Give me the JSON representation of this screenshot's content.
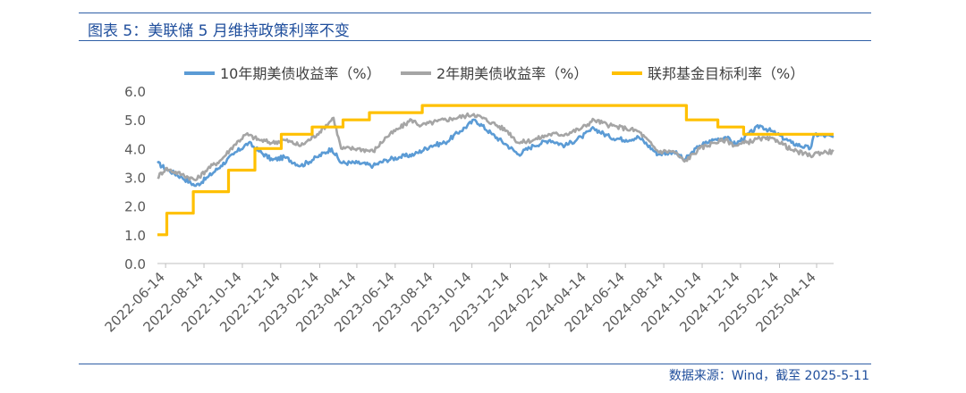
{
  "figure": {
    "title": "图表 5：美联储 5 月维持政策利率不变",
    "source": "数据来源：Wind，截至 2025-5-11"
  },
  "colors": {
    "us10y": "#5b9bd5",
    "us2y": "#a5a5a5",
    "fedfunds": "#ffc000",
    "rule": "#2f5fa6",
    "text_blue": "#1f4e9c"
  },
  "chart_data": {
    "type": "line",
    "title": "",
    "xlabel": "",
    "ylabel": "",
    "ylim": [
      0,
      6
    ],
    "yticks": [
      "0.0",
      "1.0",
      "2.0",
      "3.0",
      "4.0",
      "5.0",
      "6.0"
    ],
    "x_range": [
      "2022-06-01",
      "2025-05-11"
    ],
    "xticks": [
      "2022-06-14",
      "2022-08-14",
      "2022-10-14",
      "2022-12-14",
      "2023-02-14",
      "2023-04-14",
      "2023-06-14",
      "2023-08-14",
      "2023-10-14",
      "2023-12-14",
      "2024-02-14",
      "2024-04-14",
      "2024-06-14",
      "2024-08-14",
      "2024-10-14",
      "2024-12-14",
      "2025-02-14",
      "2025-04-14"
    ],
    "grid": false,
    "legend_position": "top",
    "series": [
      {
        "name": "10年期美债收益率（%）",
        "key": "us10y",
        "style": "line",
        "points": [
          [
            "2022-06-01",
            3.5
          ],
          [
            "2022-06-14",
            3.3
          ],
          [
            "2022-07-10",
            3.0
          ],
          [
            "2022-08-01",
            2.7
          ],
          [
            "2022-08-20",
            3.0
          ],
          [
            "2022-09-10",
            3.4
          ],
          [
            "2022-09-30",
            3.8
          ],
          [
            "2022-10-24",
            4.2
          ],
          [
            "2022-11-10",
            3.9
          ],
          [
            "2022-12-01",
            3.6
          ],
          [
            "2022-12-20",
            3.7
          ],
          [
            "2023-01-15",
            3.4
          ],
          [
            "2023-02-10",
            3.7
          ],
          [
            "2023-03-05",
            4.0
          ],
          [
            "2023-03-20",
            3.5
          ],
          [
            "2023-04-15",
            3.5
          ],
          [
            "2023-05-10",
            3.4
          ],
          [
            "2023-05-31",
            3.6
          ],
          [
            "2023-06-20",
            3.7
          ],
          [
            "2023-07-15",
            3.8
          ],
          [
            "2023-08-10",
            4.1
          ],
          [
            "2023-09-01",
            4.2
          ],
          [
            "2023-09-25",
            4.6
          ],
          [
            "2023-10-19",
            5.0
          ],
          [
            "2023-11-15",
            4.5
          ],
          [
            "2023-12-10",
            4.1
          ],
          [
            "2023-12-27",
            3.8
          ],
          [
            "2024-01-20",
            4.1
          ],
          [
            "2024-02-15",
            4.3
          ],
          [
            "2024-03-10",
            4.1
          ],
          [
            "2024-04-05",
            4.4
          ],
          [
            "2024-04-25",
            4.7
          ],
          [
            "2024-05-20",
            4.4
          ],
          [
            "2024-06-15",
            4.3
          ],
          [
            "2024-07-05",
            4.4
          ],
          [
            "2024-08-05",
            3.8
          ],
          [
            "2024-08-30",
            3.9
          ],
          [
            "2024-09-16",
            3.6
          ],
          [
            "2024-10-10",
            4.1
          ],
          [
            "2024-11-01",
            4.3
          ],
          [
            "2024-11-20",
            4.4
          ],
          [
            "2024-12-06",
            4.15
          ],
          [
            "2025-01-14",
            4.8
          ],
          [
            "2025-02-10",
            4.5
          ],
          [
            "2025-03-05",
            4.2
          ],
          [
            "2025-04-04",
            4.0
          ],
          [
            "2025-04-11",
            4.5
          ],
          [
            "2025-05-11",
            4.4
          ]
        ]
      },
      {
        "name": "2年期美债收益率（%）",
        "key": "us2y",
        "style": "line",
        "points": [
          [
            "2022-06-01",
            3.0
          ],
          [
            "2022-06-14",
            3.3
          ],
          [
            "2022-07-10",
            3.1
          ],
          [
            "2022-08-01",
            2.9
          ],
          [
            "2022-08-20",
            3.3
          ],
          [
            "2022-09-10",
            3.6
          ],
          [
            "2022-09-30",
            4.1
          ],
          [
            "2022-10-20",
            4.5
          ],
          [
            "2022-11-10",
            4.3
          ],
          [
            "2022-12-01",
            4.2
          ],
          [
            "2022-12-20",
            4.3
          ],
          [
            "2023-01-15",
            4.1
          ],
          [
            "2023-02-10",
            4.5
          ],
          [
            "2023-03-08",
            5.07
          ],
          [
            "2023-03-20",
            4.0
          ],
          [
            "2023-04-15",
            4.0
          ],
          [
            "2023-05-10",
            3.9
          ],
          [
            "2023-05-31",
            4.4
          ],
          [
            "2023-06-20",
            4.7
          ],
          [
            "2023-07-10",
            5.0
          ],
          [
            "2023-07-25",
            4.8
          ],
          [
            "2023-08-20",
            4.95
          ],
          [
            "2023-09-15",
            5.05
          ],
          [
            "2023-10-17",
            5.2
          ],
          [
            "2023-11-15",
            4.9
          ],
          [
            "2023-12-10",
            4.6
          ],
          [
            "2023-12-27",
            4.2
          ],
          [
            "2024-01-20",
            4.3
          ],
          [
            "2024-02-15",
            4.5
          ],
          [
            "2024-03-10",
            4.5
          ],
          [
            "2024-04-05",
            4.7
          ],
          [
            "2024-04-25",
            5.0
          ],
          [
            "2024-05-20",
            4.8
          ],
          [
            "2024-06-15",
            4.7
          ],
          [
            "2024-07-05",
            4.6
          ],
          [
            "2024-08-05",
            3.9
          ],
          [
            "2024-08-30",
            3.9
          ],
          [
            "2024-09-16",
            3.55
          ],
          [
            "2024-10-10",
            4.0
          ],
          [
            "2024-11-01",
            4.2
          ],
          [
            "2024-11-20",
            4.3
          ],
          [
            "2024-12-06",
            4.1
          ],
          [
            "2025-01-14",
            4.35
          ],
          [
            "2025-02-10",
            4.3
          ],
          [
            "2025-03-05",
            3.95
          ],
          [
            "2025-04-04",
            3.75
          ],
          [
            "2025-04-15",
            3.85
          ],
          [
            "2025-05-11",
            3.9
          ]
        ]
      },
      {
        "name": "联邦基金目标利率（%）",
        "key": "fedfunds",
        "style": "step",
        "points": [
          [
            "2022-06-01",
            1.0
          ],
          [
            "2022-06-16",
            1.75
          ],
          [
            "2022-07-28",
            2.5
          ],
          [
            "2022-09-22",
            3.25
          ],
          [
            "2022-11-03",
            4.0
          ],
          [
            "2022-12-15",
            4.5
          ],
          [
            "2023-02-02",
            4.75
          ],
          [
            "2023-03-23",
            5.0
          ],
          [
            "2023-05-04",
            5.25
          ],
          [
            "2023-07-27",
            5.5
          ],
          [
            "2024-09-19",
            5.0
          ],
          [
            "2024-11-08",
            4.75
          ],
          [
            "2024-12-19",
            4.5
          ],
          [
            "2025-05-11",
            4.5
          ]
        ]
      }
    ]
  }
}
